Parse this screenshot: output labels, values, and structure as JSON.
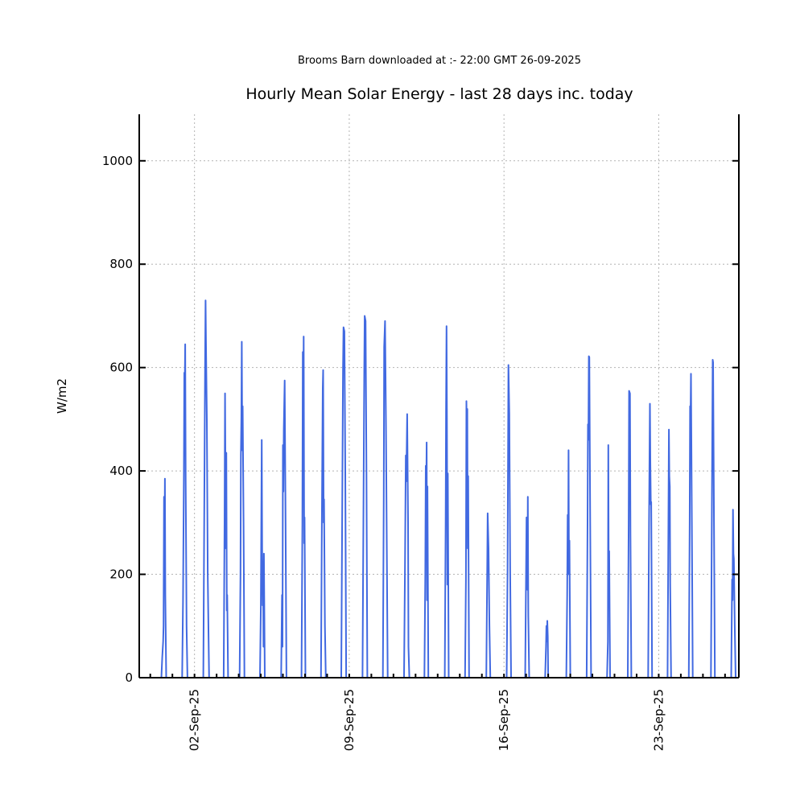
{
  "subtitle": "Brooms Barn downloaded at :- 22:00 GMT 26-09-2025",
  "chart_data": {
    "type": "line",
    "title": "Hourly Mean Solar Energy - last 28 days inc. today",
    "ylabel": "W/m2",
    "xlabel": "",
    "ylim": [
      0,
      1090
    ],
    "yticks": [
      0,
      200,
      400,
      600,
      800,
      1000
    ],
    "xlim_days": [
      -0.5,
      26.625
    ],
    "xticks": [
      {
        "day": 2,
        "label": "02-Sep-25"
      },
      {
        "day": 9,
        "label": "09-Sep-25"
      },
      {
        "day": 16,
        "label": "16-Sep-25"
      },
      {
        "day": 23,
        "label": "23-Sep-25"
      }
    ],
    "grid": true,
    "x_note_units": "days of September 2025 (day-of-month, fractional hours)",
    "series": [
      {
        "name": "",
        "color": "#4169e1",
        "points": [
          [
            0.5,
            0
          ],
          [
            0.54,
            40
          ],
          [
            0.58,
            70
          ],
          [
            0.6,
            100
          ],
          [
            0.62,
            350
          ],
          [
            0.64,
            230
          ],
          [
            0.66,
            385
          ],
          [
            0.68,
            160
          ],
          [
            0.72,
            0
          ],
          [
            1.44,
            0
          ],
          [
            1.48,
            150
          ],
          [
            1.52,
            400
          ],
          [
            1.54,
            590
          ],
          [
            1.56,
            575
          ],
          [
            1.58,
            645
          ],
          [
            1.6,
            380
          ],
          [
            1.64,
            100
          ],
          [
            1.68,
            0
          ],
          [
            2.4,
            0
          ],
          [
            2.44,
            300
          ],
          [
            2.48,
            600
          ],
          [
            2.5,
            730
          ],
          [
            2.52,
            650
          ],
          [
            2.56,
            500
          ],
          [
            2.6,
            200
          ],
          [
            2.66,
            0
          ],
          [
            3.32,
            0
          ],
          [
            3.36,
            300
          ],
          [
            3.38,
            550
          ],
          [
            3.4,
            400
          ],
          [
            3.42,
            250
          ],
          [
            3.44,
            435
          ],
          [
            3.46,
            130
          ],
          [
            3.48,
            160
          ],
          [
            3.52,
            0
          ],
          [
            4.04,
            0
          ],
          [
            4.08,
            200
          ],
          [
            4.1,
            430
          ],
          [
            4.12,
            505
          ],
          [
            4.14,
            650
          ],
          [
            4.16,
            440
          ],
          [
            4.18,
            525
          ],
          [
            4.22,
            300
          ],
          [
            4.26,
            0
          ],
          [
            4.96,
            0
          ],
          [
            5.0,
            140
          ],
          [
            5.04,
            460
          ],
          [
            5.06,
            250
          ],
          [
            5.08,
            140
          ],
          [
            5.1,
            225
          ],
          [
            5.12,
            60
          ],
          [
            5.14,
            240
          ],
          [
            5.18,
            0
          ],
          [
            5.92,
            0
          ],
          [
            5.96,
            160
          ],
          [
            5.98,
            60
          ],
          [
            6.0,
            450
          ],
          [
            6.02,
            360
          ],
          [
            6.04,
            480
          ],
          [
            6.08,
            575
          ],
          [
            6.12,
            300
          ],
          [
            6.16,
            0
          ],
          [
            6.84,
            0
          ],
          [
            6.88,
            300
          ],
          [
            6.9,
            630
          ],
          [
            6.92,
            520
          ],
          [
            6.94,
            660
          ],
          [
            6.96,
            260
          ],
          [
            6.98,
            310
          ],
          [
            7.02,
            0
          ],
          [
            7.72,
            0
          ],
          [
            7.76,
            300
          ],
          [
            7.8,
            560
          ],
          [
            7.82,
            595
          ],
          [
            7.84,
            300
          ],
          [
            7.86,
            345
          ],
          [
            7.9,
            100
          ],
          [
            7.94,
            0
          ],
          [
            8.64,
            0
          ],
          [
            8.68,
            300
          ],
          [
            8.72,
            600
          ],
          [
            8.74,
            678
          ],
          [
            8.78,
            670
          ],
          [
            8.82,
            400
          ],
          [
            8.86,
            0
          ],
          [
            9.6,
            0
          ],
          [
            9.64,
            300
          ],
          [
            9.68,
            600
          ],
          [
            9.7,
            700
          ],
          [
            9.74,
            690
          ],
          [
            9.78,
            400
          ],
          [
            9.82,
            0
          ],
          [
            10.52,
            0
          ],
          [
            10.56,
            350
          ],
          [
            10.58,
            640
          ],
          [
            10.62,
            690
          ],
          [
            10.66,
            500
          ],
          [
            10.7,
            250
          ],
          [
            10.74,
            0
          ],
          [
            11.48,
            0
          ],
          [
            11.52,
            200
          ],
          [
            11.56,
            430
          ],
          [
            11.58,
            380
          ],
          [
            11.62,
            510
          ],
          [
            11.66,
            300
          ],
          [
            11.68,
            60
          ],
          [
            11.72,
            0
          ],
          [
            12.4,
            0
          ],
          [
            12.44,
            200
          ],
          [
            12.46,
            410
          ],
          [
            12.48,
            350
          ],
          [
            12.5,
            455
          ],
          [
            12.52,
            150
          ],
          [
            12.54,
            370
          ],
          [
            12.58,
            0
          ],
          [
            13.32,
            0
          ],
          [
            13.36,
            300
          ],
          [
            13.38,
            520
          ],
          [
            13.4,
            680
          ],
          [
            13.42,
            500
          ],
          [
            13.44,
            180
          ],
          [
            13.46,
            395
          ],
          [
            13.5,
            0
          ],
          [
            14.24,
            0
          ],
          [
            14.28,
            190
          ],
          [
            14.3,
            535
          ],
          [
            14.32,
            460
          ],
          [
            14.34,
            520
          ],
          [
            14.36,
            250
          ],
          [
            14.38,
            390
          ],
          [
            14.42,
            0
          ],
          [
            15.2,
            0
          ],
          [
            15.24,
            200
          ],
          [
            15.26,
            318
          ],
          [
            15.3,
            250
          ],
          [
            15.34,
            100
          ],
          [
            15.38,
            0
          ],
          [
            16.12,
            0
          ],
          [
            16.16,
            200
          ],
          [
            16.2,
            605
          ],
          [
            16.24,
            510
          ],
          [
            16.28,
            200
          ],
          [
            16.32,
            0
          ],
          [
            16.96,
            0
          ],
          [
            17.0,
            200
          ],
          [
            17.02,
            310
          ],
          [
            17.04,
            250
          ],
          [
            17.06,
            170
          ],
          [
            17.08,
            350
          ],
          [
            17.1,
            120
          ],
          [
            17.14,
            0
          ],
          [
            17.86,
            0
          ],
          [
            17.9,
            60
          ],
          [
            17.92,
            100
          ],
          [
            17.94,
            70
          ],
          [
            17.96,
            110
          ],
          [
            17.98,
            80
          ],
          [
            18.0,
            0
          ],
          [
            18.82,
            0
          ],
          [
            18.86,
            160
          ],
          [
            18.88,
            315
          ],
          [
            18.9,
            200
          ],
          [
            18.92,
            440
          ],
          [
            18.94,
            210
          ],
          [
            18.96,
            265
          ],
          [
            19.0,
            0
          ],
          [
            19.74,
            0
          ],
          [
            19.78,
            300
          ],
          [
            19.8,
            490
          ],
          [
            19.82,
            460
          ],
          [
            19.84,
            622
          ],
          [
            19.86,
            620
          ],
          [
            19.9,
            300
          ],
          [
            19.94,
            0
          ],
          [
            20.66,
            0
          ],
          [
            20.7,
            70
          ],
          [
            20.72,
            450
          ],
          [
            20.74,
            140
          ],
          [
            20.76,
            245
          ],
          [
            20.8,
            0
          ],
          [
            21.6,
            0
          ],
          [
            21.64,
            300
          ],
          [
            21.66,
            555
          ],
          [
            21.7,
            550
          ],
          [
            21.72,
            280
          ],
          [
            21.76,
            0
          ],
          [
            22.52,
            0
          ],
          [
            22.56,
            300
          ],
          [
            22.6,
            530
          ],
          [
            22.62,
            420
          ],
          [
            22.64,
            335
          ],
          [
            22.66,
            340
          ],
          [
            22.7,
            0
          ],
          [
            23.4,
            0
          ],
          [
            23.44,
            300
          ],
          [
            23.46,
            480
          ],
          [
            23.48,
            390
          ],
          [
            23.5,
            370
          ],
          [
            23.52,
            180
          ],
          [
            23.56,
            0
          ],
          [
            24.36,
            0
          ],
          [
            24.4,
            300
          ],
          [
            24.42,
            525
          ],
          [
            24.44,
            510
          ],
          [
            24.46,
            588
          ],
          [
            24.5,
            300
          ],
          [
            24.54,
            0
          ],
          [
            25.36,
            0
          ],
          [
            25.4,
            300
          ],
          [
            25.44,
            615
          ],
          [
            25.46,
            610
          ],
          [
            25.5,
            300
          ],
          [
            25.54,
            0
          ],
          [
            26.28,
            0
          ],
          [
            26.32,
            190
          ],
          [
            26.34,
            150
          ],
          [
            26.36,
            325
          ],
          [
            26.38,
            240
          ],
          [
            26.4,
            230
          ],
          [
            26.44,
            100
          ],
          [
            26.48,
            0
          ]
        ]
      }
    ]
  }
}
